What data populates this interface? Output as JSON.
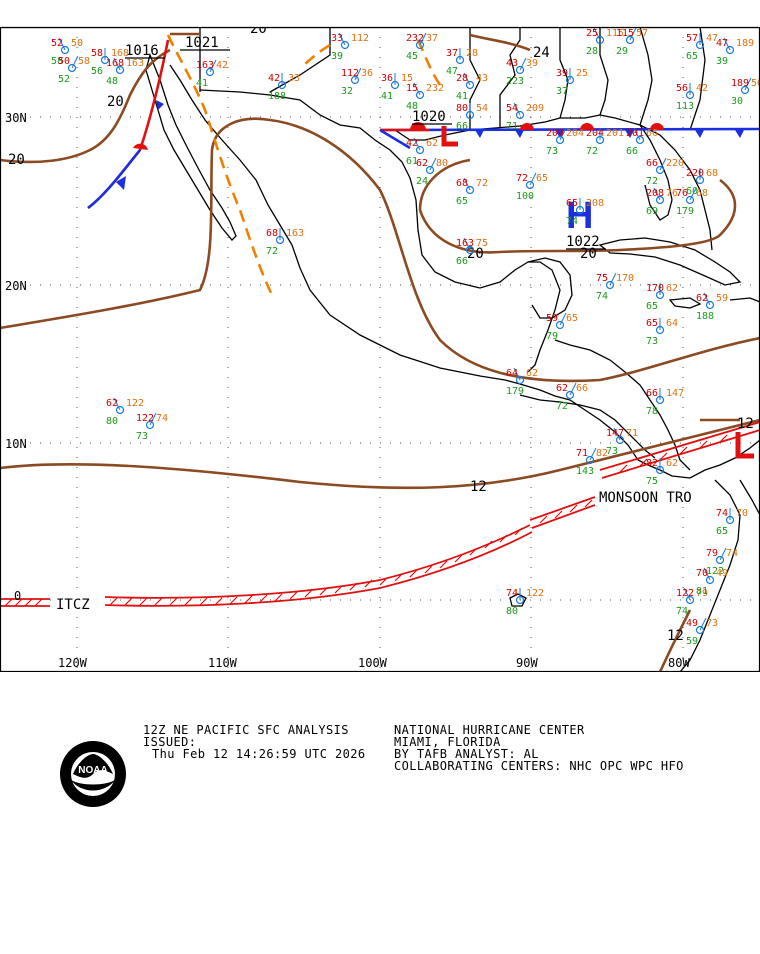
{
  "chart_title": "12Z NE PACIFIC SFC ANALYSIS",
  "issued_label": "ISSUED:",
  "issued_time": "Thu Feb 12 14:26:59 UTC 2026",
  "center_name": "NATIONAL HURRICANE CENTER",
  "center_location": "MIAMI, FLORIDA",
  "analyst": "BY TAFB ANALYST: AL",
  "collaborating": "COLLABORATING CENTERS: NHC OPC WPC HFO",
  "logo_text": "NOAA",
  "lat_labels": [
    "30N",
    "20N",
    "10N",
    "0"
  ],
  "lon_labels": [
    "120W",
    "110W",
    "100W",
    "90W",
    "80W"
  ],
  "isobar_labels": [
    "20",
    "20",
    "20",
    "20",
    "24",
    "12",
    "12",
    "12",
    "20"
  ],
  "pressure_centers": [
    {
      "type": "H",
      "pressure": "1022"
    },
    {
      "type": "L",
      "pressure": "1020"
    }
  ],
  "pressure_values": [
    "1016",
    "1021"
  ],
  "features": [
    "ITCZ",
    "MONSOON TRO"
  ],
  "station_obs": [
    "52",
    "58",
    "50",
    "52",
    "58",
    "56",
    "168",
    "48",
    "163",
    "41",
    "42",
    "188",
    "33",
    "39",
    "112",
    "32",
    "36",
    "41",
    "15",
    "48",
    "232",
    "45",
    "37",
    "47",
    "28",
    "41",
    "43",
    "223",
    "39",
    "37",
    "25",
    "28",
    "115",
    "29",
    "57",
    "65",
    "47",
    "39",
    "189",
    "30",
    "56",
    "113",
    "42",
    "61",
    "62",
    "24",
    "80",
    "66",
    "54",
    "71",
    "209",
    "73",
    "204",
    "72",
    "201",
    "66",
    "66",
    "72",
    "220",
    "60",
    "68",
    "65",
    "72",
    "100",
    "65",
    "74",
    "208",
    "69",
    "76",
    "179",
    "68",
    "72",
    "163",
    "66",
    "75",
    "74",
    "170",
    "65",
    "62",
    "188",
    "59",
    "79",
    "65",
    "73",
    "64",
    "179",
    "62",
    "72",
    "66",
    "78",
    "147",
    "73",
    "71",
    "143",
    "82",
    "75",
    "62",
    "80",
    "122",
    "73",
    "74",
    "80",
    "122",
    "74",
    "79",
    "122",
    "74",
    "65",
    "70",
    "81",
    "49",
    "59",
    "73",
    "63",
    "74",
    "105",
    "110",
    "122"
  ],
  "colors": {
    "isobar": "#8b4a22",
    "coast": "#000000",
    "cold_front": "#1a2fe0",
    "warm_front": "#e01010",
    "trough": "#f08000",
    "itcz": "#e01010",
    "station_temp": "#d00000",
    "station_dew": "#1a9a1a",
    "station_pres": "#e07010",
    "station_marker": "#1a7ad8",
    "high": "#1a2fe0",
    "low": "#e01010"
  }
}
